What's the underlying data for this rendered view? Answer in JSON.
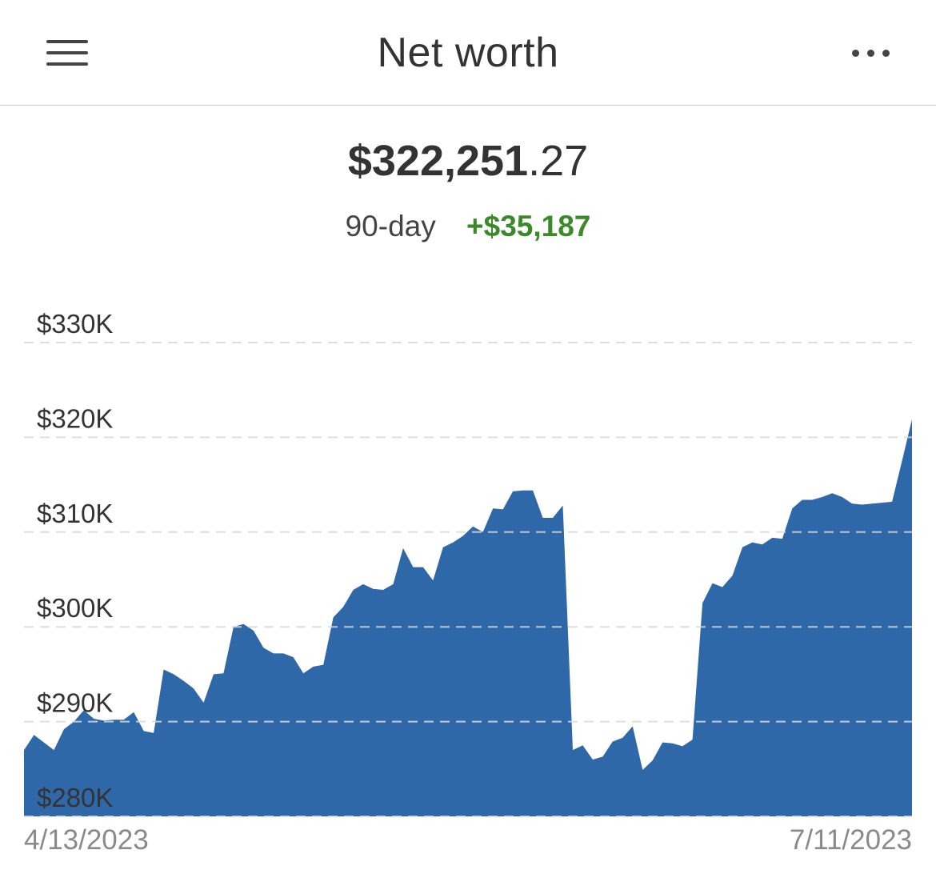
{
  "header": {
    "title": "Net worth",
    "menu_icon": "hamburger-menu-icon",
    "more_icon": "more-options-icon"
  },
  "summary": {
    "amount_whole": "$322,251",
    "amount_cents": ".27",
    "period_label": "90-day",
    "change": "+$35,187",
    "change_color": "#3a8a2a"
  },
  "colors": {
    "area_fill": "#2f68a8",
    "gridline": "#d9d9d9",
    "text": "#333333"
  },
  "chart_data": {
    "type": "area",
    "title": "",
    "xlabel": "",
    "ylabel": "",
    "x_start_label": "4/13/2023",
    "x_end_label": "7/11/2023",
    "ylim": [
      280000,
      330000
    ],
    "yticks": [
      280000,
      290000,
      300000,
      310000,
      320000,
      330000
    ],
    "ytick_labels": [
      "$280K",
      "$290K",
      "$300K",
      "$310K",
      "$320K",
      "$330K"
    ],
    "grid": true,
    "grid_style": "dashed",
    "legend": "none",
    "x": [
      "2023-04-13",
      "2023-04-14",
      "2023-04-15",
      "2023-04-16",
      "2023-04-17",
      "2023-04-18",
      "2023-04-19",
      "2023-04-20",
      "2023-04-21",
      "2023-04-22",
      "2023-04-23",
      "2023-04-24",
      "2023-04-25",
      "2023-04-26",
      "2023-04-27",
      "2023-04-28",
      "2023-04-29",
      "2023-04-30",
      "2023-05-01",
      "2023-05-02",
      "2023-05-03",
      "2023-05-04",
      "2023-05-05",
      "2023-05-06",
      "2023-05-07",
      "2023-05-08",
      "2023-05-09",
      "2023-05-10",
      "2023-05-11",
      "2023-05-12",
      "2023-05-13",
      "2023-05-14",
      "2023-05-15",
      "2023-05-16",
      "2023-05-17",
      "2023-05-18",
      "2023-05-19",
      "2023-05-20",
      "2023-05-21",
      "2023-05-22",
      "2023-05-23",
      "2023-05-24",
      "2023-05-25",
      "2023-05-26",
      "2023-05-27",
      "2023-05-28",
      "2023-05-29",
      "2023-05-30",
      "2023-05-31",
      "2023-06-01",
      "2023-06-02",
      "2023-06-03",
      "2023-06-04",
      "2023-06-05",
      "2023-06-06",
      "2023-06-07",
      "2023-06-08",
      "2023-06-09",
      "2023-06-10",
      "2023-06-11",
      "2023-06-12",
      "2023-06-13",
      "2023-06-14",
      "2023-06-15",
      "2023-06-16",
      "2023-06-17",
      "2023-06-18",
      "2023-06-19",
      "2023-06-20",
      "2023-06-21",
      "2023-06-22",
      "2023-06-23",
      "2023-06-24",
      "2023-06-25",
      "2023-06-26",
      "2023-06-27",
      "2023-06-28",
      "2023-06-29",
      "2023-06-30",
      "2023-07-01",
      "2023-07-02",
      "2023-07-03",
      "2023-07-04",
      "2023-07-05",
      "2023-07-06",
      "2023-07-07",
      "2023-07-08",
      "2023-07-09",
      "2023-07-10",
      "2023-07-11"
    ],
    "values": [
      287000,
      288600,
      287800,
      287000,
      289200,
      290000,
      291200,
      290300,
      290100,
      290200,
      290200,
      291000,
      289000,
      288800,
      295500,
      295000,
      294300,
      293500,
      292000,
      295000,
      295100,
      300000,
      300300,
      299600,
      297800,
      297200,
      297200,
      296800,
      295100,
      295800,
      296000,
      301000,
      302100,
      303900,
      304500,
      304000,
      303900,
      304500,
      308300,
      306300,
      306300,
      304900,
      308400,
      308900,
      309600,
      310600,
      310000,
      312500,
      312400,
      314300,
      314400,
      314400,
      311500,
      311500,
      312800,
      287000,
      287500,
      286000,
      286300,
      287900,
      288300,
      289500,
      284900,
      285900,
      287800,
      287700,
      287400,
      288100,
      302500,
      304600,
      304200,
      305400,
      308400,
      308900,
      308700,
      309400,
      309300,
      312500,
      313400,
      313400,
      313700,
      314100,
      313700,
      313000,
      312900,
      313000,
      313100,
      313200,
      317500,
      321900
    ]
  }
}
